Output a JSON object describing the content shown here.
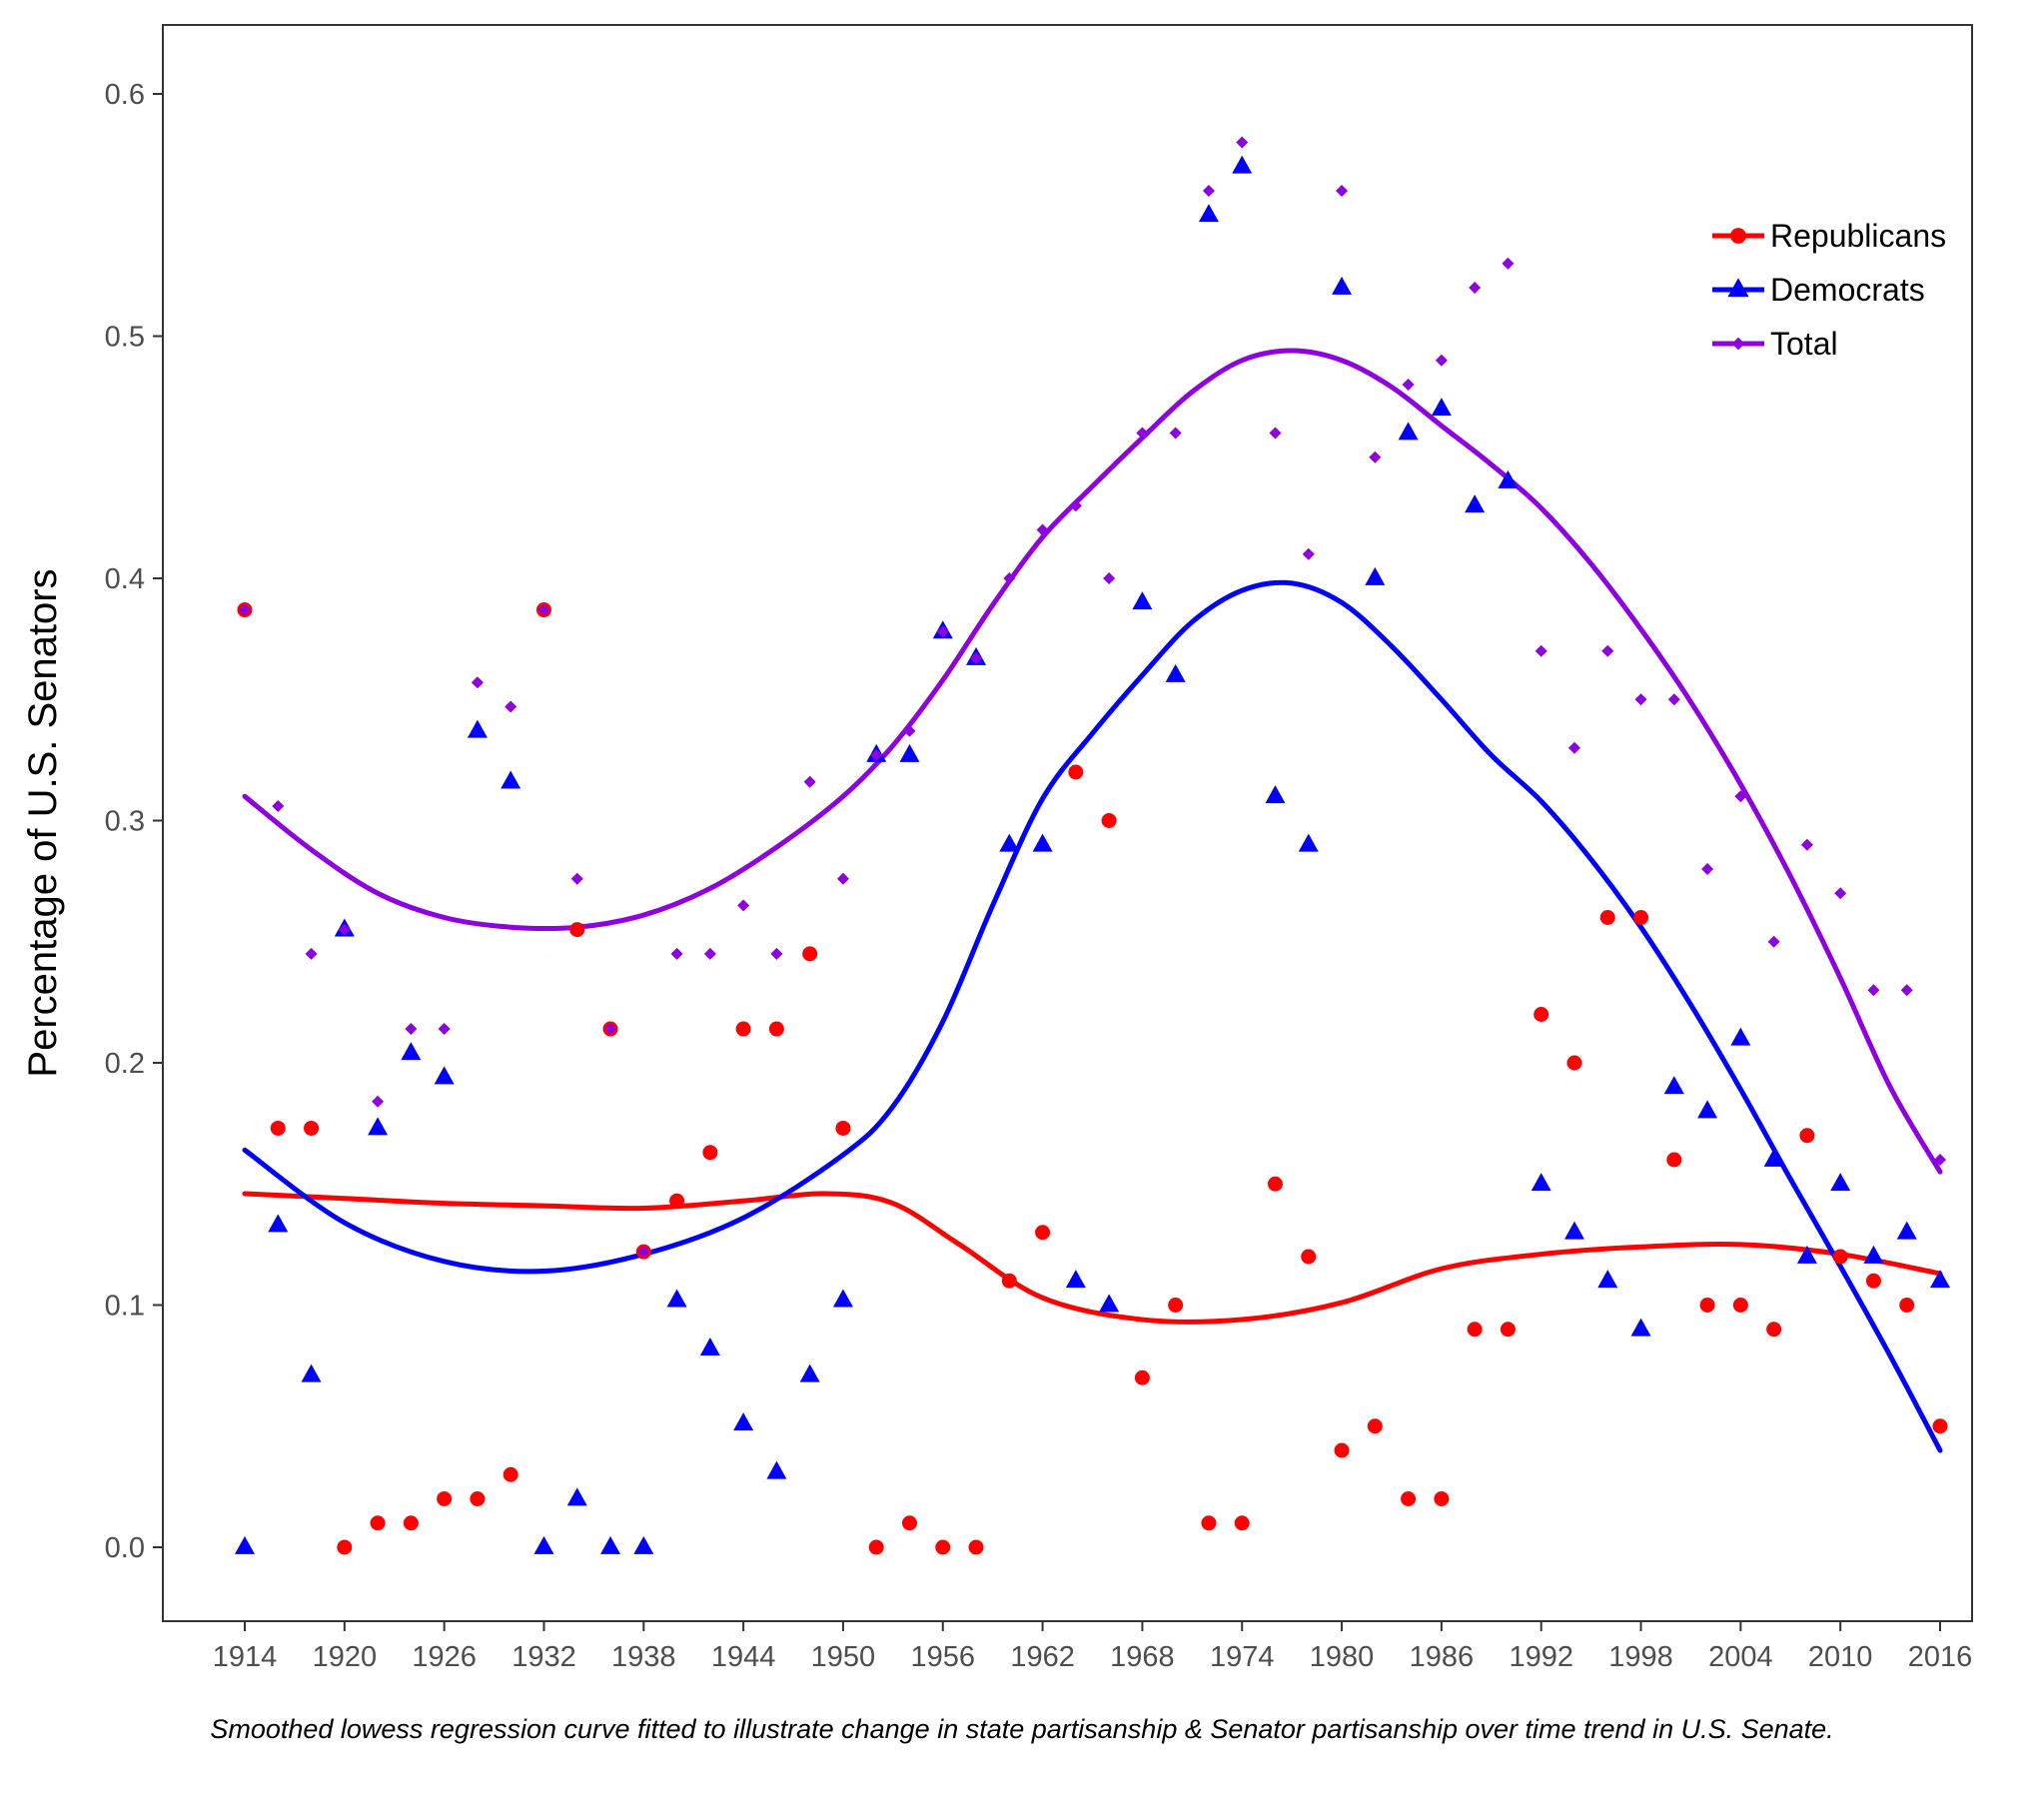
{
  "chart_data": {
    "type": "scatter",
    "title": "",
    "ylabel": "Percentage of U.S. Senators",
    "xlabel": "",
    "xlim": [
      1914,
      2016
    ],
    "ylim": [
      -0.03,
      0.63
    ],
    "x_ticks": [
      1914,
      1920,
      1926,
      1932,
      1938,
      1944,
      1950,
      1956,
      1962,
      1968,
      1974,
      1980,
      1986,
      1992,
      1998,
      2004,
      2010,
      2016
    ],
    "y_ticks": [
      0.0,
      0.1,
      0.2,
      0.3,
      0.4,
      0.5,
      0.6
    ],
    "y_tick_labels": [
      "0.0",
      "0.1",
      "0.2",
      "0.3",
      "0.4",
      "0.5",
      "0.6"
    ],
    "grid": false,
    "legend_position": "top-right",
    "x": [
      1914,
      1916,
      1918,
      1920,
      1922,
      1924,
      1926,
      1928,
      1930,
      1932,
      1934,
      1936,
      1938,
      1940,
      1942,
      1944,
      1946,
      1948,
      1950,
      1952,
      1954,
      1956,
      1958,
      1960,
      1962,
      1964,
      1966,
      1968,
      1970,
      1972,
      1974,
      1976,
      1978,
      1980,
      1982,
      1984,
      1986,
      1988,
      1990,
      1992,
      1994,
      1996,
      1998,
      2000,
      2002,
      2004,
      2006,
      2008,
      2010,
      2012,
      2014,
      2016
    ],
    "series": [
      {
        "name": "Republicans",
        "color": "#ff0000",
        "marker": "circle",
        "values": [
          0.387,
          0.173,
          0.173,
          0.0,
          0.01,
          0.01,
          0.02,
          0.02,
          0.03,
          0.387,
          0.255,
          0.214,
          0.122,
          0.143,
          0.163,
          0.214,
          0.214,
          0.245,
          0.173,
          0.0,
          0.01,
          0.0,
          0.0,
          0.11,
          0.13,
          0.32,
          0.3,
          0.07,
          0.1,
          0.01,
          0.01,
          0.15,
          0.12,
          0.04,
          0.05,
          0.02,
          0.02,
          0.09,
          0.09,
          0.22,
          0.2,
          0.26,
          0.26,
          0.16,
          0.1,
          0.1,
          0.09,
          0.17,
          0.12,
          0.11,
          0.1,
          0.05
        ],
        "smooth_x": [
          1914,
          1920,
          1926,
          1932,
          1938,
          1944,
          1949,
          1953,
          1957,
          1962,
          1968,
          1974,
          1980,
          1986,
          1992,
          1998,
          2004,
          2010,
          2016
        ],
        "smooth_y": [
          0.146,
          0.144,
          0.142,
          0.141,
          0.14,
          0.143,
          0.146,
          0.142,
          0.125,
          0.103,
          0.094,
          0.094,
          0.101,
          0.115,
          0.121,
          0.124,
          0.125,
          0.121,
          0.113
        ]
      },
      {
        "name": "Democrats",
        "color": "#0000ff",
        "marker": "triangle",
        "values": [
          0.0,
          0.133,
          0.071,
          0.255,
          0.173,
          0.204,
          0.194,
          0.337,
          0.316,
          0.0,
          0.02,
          0.0,
          0.0,
          0.102,
          0.082,
          0.051,
          0.031,
          0.071,
          0.102,
          0.327,
          0.327,
          0.378,
          0.367,
          0.29,
          0.29,
          0.11,
          0.1,
          0.39,
          0.36,
          0.55,
          0.57,
          0.31,
          0.29,
          0.52,
          0.4,
          0.46,
          0.47,
          0.43,
          0.44,
          0.15,
          0.13,
          0.11,
          0.09,
          0.19,
          0.18,
          0.21,
          0.16,
          0.12,
          0.15,
          0.12,
          0.13,
          0.11
        ],
        "smooth_x": [
          1914,
          1920,
          1926,
          1932,
          1938,
          1944,
          1950,
          1953,
          1956,
          1959,
          1962,
          1965,
          1968,
          1971,
          1974,
          1977,
          1980,
          1983,
          1986,
          1989,
          1992,
          1995,
          1998,
          2001,
          2004,
          2007,
          2010,
          2013,
          2016
        ],
        "smooth_y": [
          0.164,
          0.134,
          0.118,
          0.114,
          0.121,
          0.136,
          0.162,
          0.182,
          0.217,
          0.265,
          0.309,
          0.336,
          0.36,
          0.382,
          0.395,
          0.398,
          0.39,
          0.372,
          0.35,
          0.327,
          0.308,
          0.284,
          0.256,
          0.224,
          0.189,
          0.152,
          0.116,
          0.079,
          0.04
        ]
      },
      {
        "name": "Total",
        "color": "#8e00e0",
        "marker": "diamond",
        "values": [
          0.387,
          0.306,
          0.245,
          0.255,
          0.184,
          0.214,
          0.214,
          0.357,
          0.347,
          0.387,
          0.276,
          0.214,
          0.122,
          0.245,
          0.245,
          0.265,
          0.245,
          0.316,
          0.276,
          0.327,
          0.337,
          0.378,
          0.367,
          0.4,
          0.42,
          0.43,
          0.4,
          0.46,
          0.46,
          0.56,
          0.58,
          0.46,
          0.41,
          0.56,
          0.45,
          0.48,
          0.49,
          0.52,
          0.53,
          0.37,
          0.33,
          0.37,
          0.35,
          0.35,
          0.28,
          0.31,
          0.25,
          0.29,
          0.27,
          0.23,
          0.23,
          0.16
        ],
        "smooth_x": [
          1914,
          1918,
          1922,
          1926,
          1930,
          1934,
          1938,
          1942,
          1946,
          1950,
          1953,
          1956,
          1959,
          1962,
          1965,
          1968,
          1971,
          1974,
          1977,
          1980,
          1983,
          1986,
          1989,
          1992,
          1995,
          1998,
          2001,
          2004,
          2007,
          2010,
          2013,
          2016
        ],
        "smooth_y": [
          0.31,
          0.288,
          0.27,
          0.26,
          0.256,
          0.256,
          0.261,
          0.272,
          0.289,
          0.31,
          0.331,
          0.358,
          0.389,
          0.417,
          0.438,
          0.458,
          0.477,
          0.49,
          0.494,
          0.49,
          0.479,
          0.463,
          0.447,
          0.429,
          0.406,
          0.379,
          0.349,
          0.315,
          0.277,
          0.235,
          0.19,
          0.155
        ]
      }
    ]
  },
  "caption": "Smoothed lowess regression curve fitted to illustrate change in state partisanship & Senator partisanship over time trend in U.S. Senate."
}
